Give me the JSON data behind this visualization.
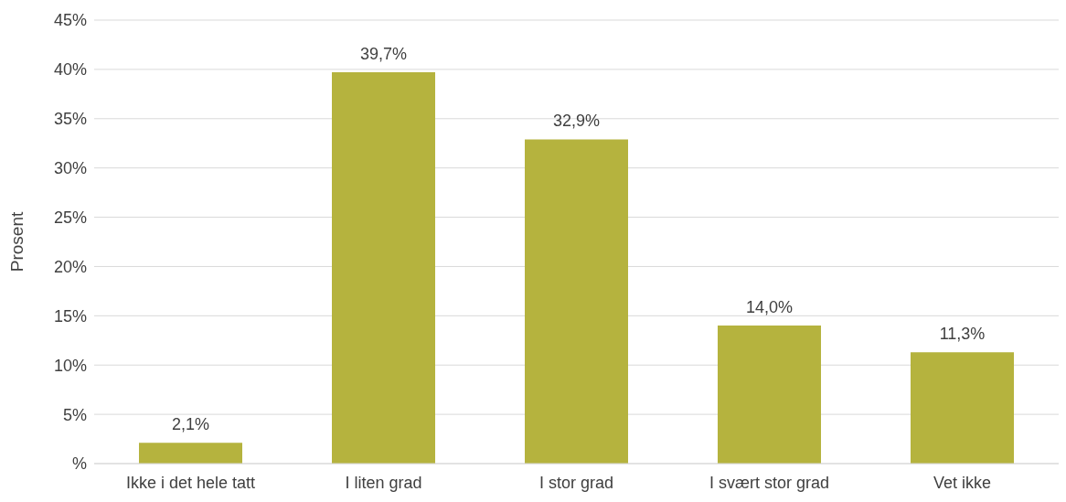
{
  "chart_data": {
    "type": "bar",
    "ylabel": "Prosent",
    "categories": [
      "Ikke i det hele tatt",
      "I liten grad",
      "I stor grad",
      "I svært stor grad",
      "Vet ikke"
    ],
    "values": [
      2.1,
      39.7,
      32.9,
      14.0,
      11.3
    ],
    "value_labels": [
      "2,1%",
      "39,7%",
      "32,9%",
      "14,0%",
      "11,3%"
    ],
    "color": "#b5b33e",
    "ylim": [
      0,
      45
    ],
    "yticks": [
      {
        "value": 0,
        "label": "%"
      },
      {
        "value": 5,
        "label": "5%"
      },
      {
        "value": 10,
        "label": "10%"
      },
      {
        "value": 15,
        "label": "15%"
      },
      {
        "value": 20,
        "label": "20%"
      },
      {
        "value": 25,
        "label": "25%"
      },
      {
        "value": 30,
        "label": "30%"
      },
      {
        "value": 35,
        "label": "35%"
      },
      {
        "value": 40,
        "label": "40%"
      },
      {
        "value": 45,
        "label": "45%"
      }
    ],
    "grid": "y",
    "legend": false
  }
}
